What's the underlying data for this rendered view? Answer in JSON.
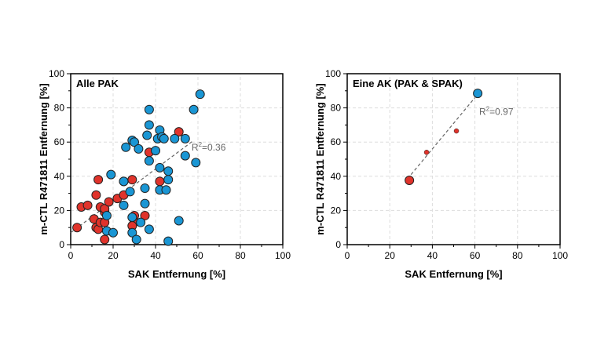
{
  "chart_data": [
    {
      "type": "scatter",
      "title": "Alle PAK",
      "xlabel": "SAK Entfernung [%]",
      "ylabel": "m-CTL R471811 Entfernung [%]",
      "xlim": [
        0,
        100
      ],
      "ylim": [
        0,
        100
      ],
      "xticks": [
        "0",
        "20",
        "40",
        "60",
        "80",
        "100"
      ],
      "yticks": [
        "0",
        "20",
        "40",
        "60",
        "80",
        "100"
      ],
      "grid": true,
      "annotation": {
        "text": "R²=0.36",
        "x": 57,
        "y": 55
      },
      "trendline": {
        "x": [
          0,
          58
        ],
        "y": [
          7,
          61
        ]
      },
      "series": [
        {
          "color": "#e0332b",
          "marker_size": "large",
          "points": [
            [
              3,
              10
            ],
            [
              5,
              22
            ],
            [
              8,
              23
            ],
            [
              11,
              15
            ],
            [
              12,
              10
            ],
            [
              12,
              29
            ],
            [
              13,
              38
            ],
            [
              13,
              9
            ],
            [
              14,
              22
            ],
            [
              14,
              13
            ],
            [
              16,
              3
            ],
            [
              16,
              13
            ],
            [
              16,
              19
            ],
            [
              16,
              21
            ],
            [
              18,
              25
            ],
            [
              22,
              27
            ],
            [
              25,
              29
            ],
            [
              25,
              37
            ],
            [
              29,
              38
            ],
            [
              30,
              17
            ],
            [
              30,
              13
            ],
            [
              29,
              11
            ],
            [
              35,
              17
            ],
            [
              37,
              54
            ],
            [
              42,
              37
            ],
            [
              51,
              66
            ]
          ]
        },
        {
          "color": "#1a96d4",
          "marker_size": "large",
          "points": [
            [
              19,
              41
            ],
            [
              17,
              17
            ],
            [
              17,
              8
            ],
            [
              20,
              7
            ],
            [
              25,
              23
            ],
            [
              25,
              37
            ],
            [
              26,
              57
            ],
            [
              28,
              31
            ],
            [
              29,
              61
            ],
            [
              30,
              60
            ],
            [
              29,
              16
            ],
            [
              29,
              7
            ],
            [
              31,
              3
            ],
            [
              32,
              56
            ],
            [
              33,
              13
            ],
            [
              35,
              24
            ],
            [
              35,
              33
            ],
            [
              36,
              64
            ],
            [
              37,
              70
            ],
            [
              37,
              79
            ],
            [
              37,
              49
            ],
            [
              37,
              9
            ],
            [
              40,
              55
            ],
            [
              41,
              62
            ],
            [
              42,
              67
            ],
            [
              42,
              45
            ],
            [
              43,
              63
            ],
            [
              44,
              62
            ],
            [
              42,
              32
            ],
            [
              45,
              32
            ],
            [
              46,
              38
            ],
            [
              46,
              43
            ],
            [
              46,
              2
            ],
            [
              49,
              62
            ],
            [
              51,
              14
            ],
            [
              54,
              52
            ],
            [
              54,
              62
            ],
            [
              58,
              79
            ],
            [
              59,
              48
            ],
            [
              61,
              88
            ]
          ]
        }
      ]
    },
    {
      "type": "scatter",
      "title": "Eine AK (PAK & SPAK)",
      "xlabel": "SAK Entfernung [%]",
      "ylabel": "m-CTL R471811 Entfernung [%]",
      "xlim": [
        0,
        100
      ],
      "ylim": [
        0,
        100
      ],
      "xticks": [
        "0",
        "20",
        "40",
        "60",
        "80",
        "100"
      ],
      "yticks": [
        "0",
        "20",
        "40",
        "60",
        "80",
        "100"
      ],
      "grid": true,
      "annotation": {
        "text": "R²=0.97",
        "x": 62,
        "y": 76
      },
      "trendline": {
        "x": [
          30,
          60
        ],
        "y": [
          41,
          86
        ]
      },
      "series": [
        {
          "color": "#e0332b",
          "marker_size": "large",
          "points": [
            [
              29.2,
              37.6
            ]
          ]
        },
        {
          "color": "#e0332b",
          "marker_size": "small",
          "points": [
            [
              37.3,
              54
            ],
            [
              51.3,
              66.5
            ]
          ]
        },
        {
          "color": "#1a96d4",
          "marker_size": "large",
          "points": [
            [
              61.3,
              88.5
            ]
          ]
        }
      ]
    }
  ]
}
